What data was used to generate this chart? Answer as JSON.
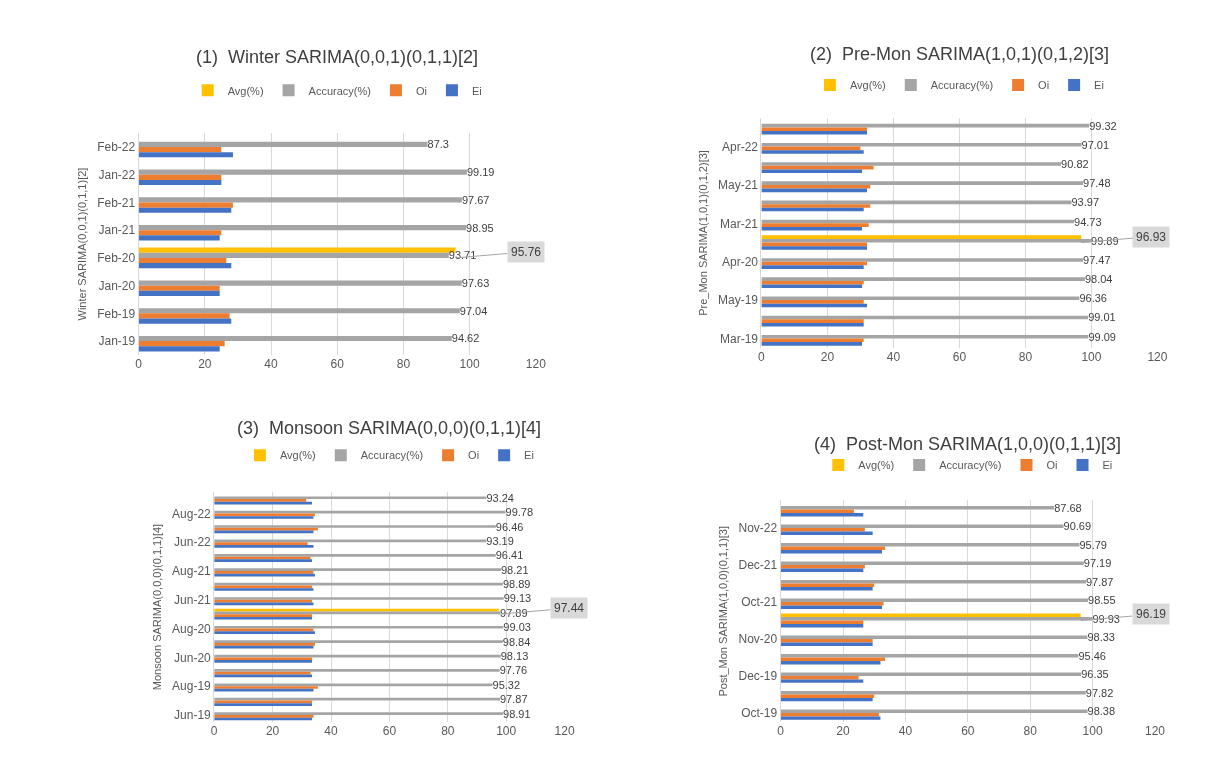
{
  "chart_data": [
    {
      "type": "bar",
      "orientation": "horizontal",
      "title": "(1)  Winter SARIMA(0,0,1)(0,1,1)[2]",
      "ylabel": "Winter SARIMA(0,0,1)(0,1,1)[2]",
      "legend": "top",
      "grid": "x",
      "xlim": [
        0,
        120
      ],
      "xticks": [
        0,
        20,
        40,
        60,
        80,
        100,
        120
      ],
      "categories": [
        "Feb-22",
        "Jan-22",
        "Feb-21",
        "Jan-21",
        "Feb-20",
        "Jan-20",
        "Feb-19",
        "Jan-19"
      ],
      "series": [
        {
          "name": "Avg(%)",
          "color": "#ffc000",
          "values": [
            null,
            null,
            null,
            null,
            95.76,
            null,
            null,
            null
          ],
          "value_labels": [
            null,
            null,
            null,
            null,
            "95.76",
            null,
            null,
            null
          ]
        },
        {
          "name": "Accuracy(%)",
          "color": "#a5a5a5",
          "values": [
            87.3,
            99.19,
            97.67,
            98.95,
            93.71,
            97.63,
            97.04,
            94.62
          ],
          "value_labels": [
            "87.3",
            "99.19",
            "97.67",
            "98.95",
            "93.71",
            "97.63",
            "97.04",
            "94.62"
          ]
        },
        {
          "name": "Oi",
          "color": "#ed7d31",
          "values": [
            25,
            25,
            28.5,
            25,
            26.5,
            24.5,
            27.5,
            26
          ]
        },
        {
          "name": "Ei",
          "color": "#4472c4",
          "values": [
            28.5,
            25,
            28,
            24.5,
            28,
            24.5,
            28,
            24.5
          ]
        }
      ]
    },
    {
      "type": "bar",
      "orientation": "horizontal",
      "title": "(2)  Pre-Mon SARIMA(1,0,1)(0,1,2)[3]",
      "ylabel": "Pre_Mon SARIMA(1,0,1)(0,1,2)[3]",
      "legend": "top",
      "grid": "x",
      "xlim": [
        0,
        120
      ],
      "xticks": [
        0,
        20,
        40,
        60,
        80,
        100,
        120
      ],
      "categories": [
        null,
        "Apr-22",
        null,
        "May-21",
        null,
        "Mar-21",
        null,
        "Apr-20",
        null,
        "May-19",
        null,
        "Mar-19"
      ],
      "series": [
        {
          "name": "Avg(%)",
          "color": "#ffc000",
          "values": [
            null,
            null,
            null,
            null,
            null,
            null,
            96.93,
            null,
            null,
            null,
            null,
            null
          ],
          "value_labels": [
            null,
            null,
            null,
            null,
            null,
            null,
            "96.93",
            null,
            null,
            null,
            null,
            null
          ]
        },
        {
          "name": "Accuracy(%)",
          "color": "#a5a5a5",
          "values": [
            99.32,
            97.01,
            90.82,
            97.48,
            93.97,
            94.73,
            99.89,
            97.47,
            98.04,
            96.36,
            99.01,
            99.09
          ],
          "value_labels": [
            "99.32",
            "97.01",
            "90.82",
            "97.48",
            "93.97",
            "94.73",
            "99.89",
            "97.47",
            "98.04",
            "96.36",
            "99.01",
            "99.09"
          ]
        },
        {
          "name": "Oi",
          "color": "#ed7d31",
          "values": [
            32,
            30,
            34,
            33,
            33,
            32.5,
            32,
            32,
            31,
            31,
            31,
            31
          ]
        },
        {
          "name": "Ei",
          "color": "#4472c4",
          "values": [
            32,
            31,
            30.5,
            32,
            31,
            30.5,
            32,
            31,
            30.5,
            32,
            31,
            30.5
          ]
        }
      ]
    },
    {
      "type": "bar",
      "orientation": "horizontal",
      "title": "(3)  Monsoon SARIMA(0,0,0)(0,1,1)[4]",
      "ylabel": "Monsoon SARIMA(0,0,0)(0,1,1)[4]",
      "legend": "top",
      "grid": "x",
      "xlim": [
        0,
        120
      ],
      "xticks": [
        0,
        20,
        40,
        60,
        80,
        100,
        120
      ],
      "categories": [
        null,
        "Aug-22",
        null,
        "Jun-22",
        null,
        "Aug-21",
        null,
        "Jun-21",
        null,
        "Aug-20",
        null,
        "Jun-20",
        null,
        "Aug-19",
        null,
        "Jun-19"
      ],
      "series": [
        {
          "name": "Avg(%)",
          "color": "#ffc000",
          "values": [
            null,
            null,
            null,
            null,
            null,
            null,
            null,
            null,
            97.44,
            null,
            null,
            null,
            null,
            null,
            null,
            null
          ],
          "value_labels": [
            null,
            null,
            null,
            null,
            null,
            null,
            null,
            null,
            "97.44",
            null,
            null,
            null,
            null,
            null,
            null,
            null
          ]
        },
        {
          "name": "Accuracy(%)",
          "color": "#a5a5a5",
          "values": [
            93.24,
            99.78,
            96.46,
            93.19,
            96.41,
            98.21,
            98.89,
            99.13,
            97.89,
            99.03,
            98.84,
            98.13,
            97.76,
            95.32,
            97.87,
            98.91
          ],
          "value_labels": [
            "93.24",
            "99.78",
            "96.46",
            "93.19",
            "96.41",
            "98.21",
            "98.89",
            "99.13",
            "97.89",
            "99.03",
            "98.84",
            "98.13",
            "97.76",
            "95.32",
            "97.87",
            "98.91"
          ]
        },
        {
          "name": "Oi",
          "color": "#ed7d31",
          "values": [
            31.5,
            34.5,
            35.5,
            32,
            33,
            34,
            33.5,
            33.5,
            33.5,
            34,
            34.5,
            33.5,
            33,
            35.5,
            33.5,
            34
          ]
        },
        {
          "name": "Ei",
          "color": "#4472c4",
          "values": [
            33.5,
            34,
            34,
            34,
            33.5,
            34.5,
            34,
            34,
            33.5,
            34.5,
            34,
            33.5,
            33.5,
            34,
            33.5,
            33.5
          ]
        }
      ]
    },
    {
      "type": "bar",
      "orientation": "horizontal",
      "title": "(4)  Post-Mon SARIMA(1,0,0)(0,1,1)[3]",
      "ylabel": "Post_Mon SARIMA(1,0,0)(0,1,1)[3]",
      "legend": "top",
      "grid": "x",
      "xlim": [
        0,
        120
      ],
      "xticks": [
        0,
        20,
        40,
        60,
        80,
        100,
        120
      ],
      "categories": [
        null,
        "Nov-22",
        null,
        "Dec-21",
        null,
        "Oct-21",
        null,
        "Nov-20",
        null,
        "Dec-19",
        null,
        "Oct-19"
      ],
      "series": [
        {
          "name": "Avg(%)",
          "color": "#ffc000",
          "values": [
            null,
            null,
            null,
            null,
            null,
            null,
            96.19,
            null,
            null,
            null,
            null,
            null
          ],
          "value_labels": [
            null,
            null,
            null,
            null,
            null,
            null,
            "96.19",
            null,
            null,
            null,
            null,
            null
          ]
        },
        {
          "name": "Accuracy(%)",
          "color": "#a5a5a5",
          "values": [
            87.68,
            90.69,
            95.79,
            97.19,
            97.87,
            98.55,
            99.93,
            98.33,
            95.46,
            96.35,
            97.82,
            98.38
          ],
          "value_labels": [
            "87.68",
            "90.69",
            "95.79",
            "97.19",
            "97.87",
            "98.55",
            "99.93",
            "98.33",
            "95.46",
            "96.35",
            "97.82",
            "98.38"
          ]
        },
        {
          "name": "Oi",
          "color": "#ed7d31",
          "values": [
            23.5,
            27,
            33.5,
            27,
            30,
            33,
            26.5,
            29.5,
            33.5,
            25,
            30,
            31.5
          ]
        },
        {
          "name": "Ei",
          "color": "#4472c4",
          "values": [
            26.5,
            29.5,
            32.5,
            26.5,
            29.5,
            32.5,
            26.5,
            29.5,
            32,
            26.5,
            29.5,
            32
          ]
        }
      ]
    }
  ]
}
